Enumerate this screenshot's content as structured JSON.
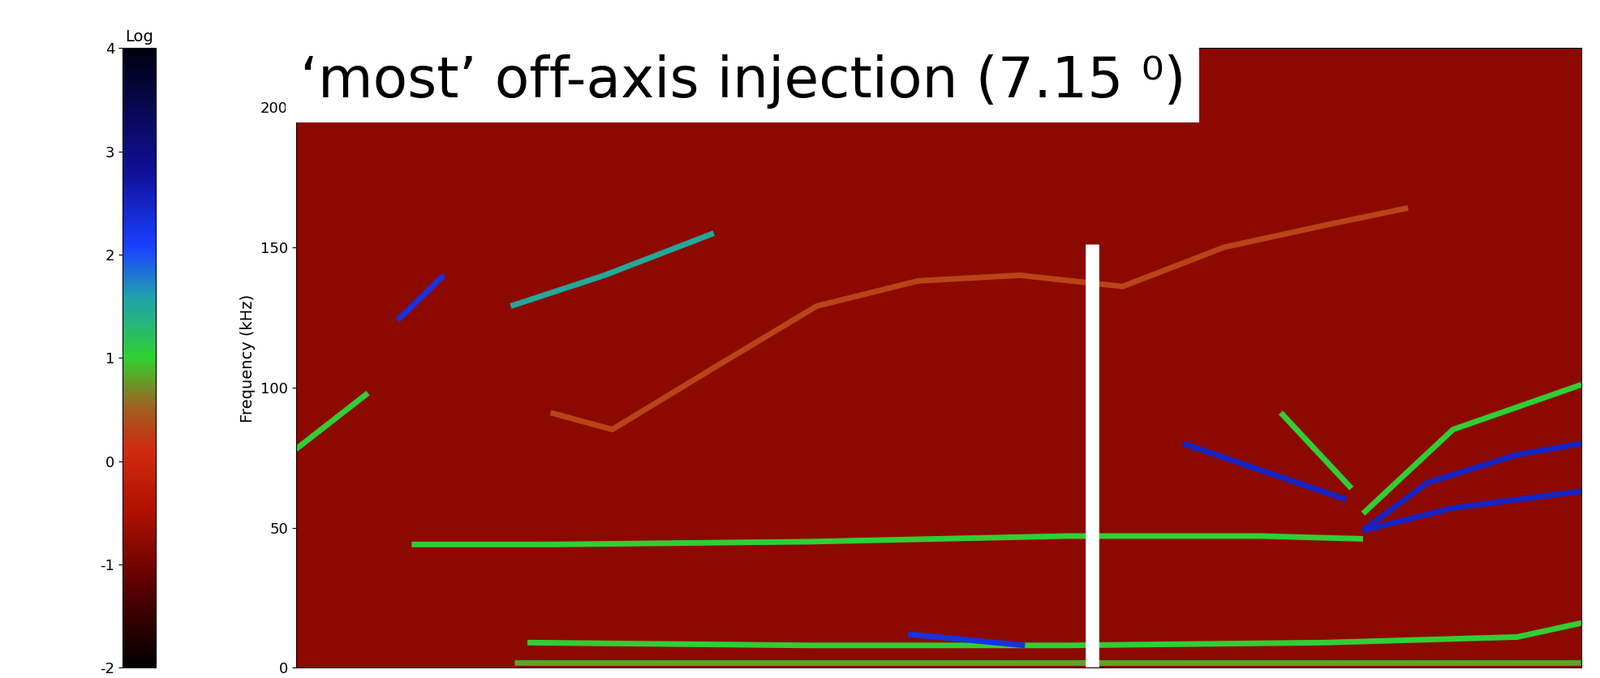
{
  "chart_data": {
    "type": "spectrogram",
    "annotation": "‘most’ off-axis injection (7.15 ⁰)",
    "y_label": "Frequency (kHz)",
    "xlim": [
      0,
      100
    ],
    "ylim": [
      0,
      221
    ],
    "yticks": [
      0,
      50,
      100,
      150,
      200
    ],
    "tick_labels": "y",
    "background": -0.8,
    "colorbar": {
      "label": "Log",
      "range": [
        -2,
        4
      ],
      "ticks": [
        -2,
        -1,
        0,
        1,
        2,
        3,
        4
      ]
    },
    "series": [
      {
        "x": [
          9,
          20,
          40,
          60,
          75,
          83
        ],
        "values": [
          44,
          44,
          45,
          47,
          47,
          46
        ],
        "level": 1
      },
      {
        "x": [
          19.8,
          24.6,
          32.5,
          40.5,
          48.4,
          56.3,
          64.3,
          72.2,
          80.2,
          86.5
        ],
        "values": [
          91,
          85,
          107,
          129,
          138,
          140,
          136,
          150,
          158,
          164
        ],
        "level": 0.3
      },
      {
        "x": [
          7.9,
          11.5
        ],
        "values": [
          124,
          140
        ],
        "level": 2.3
      },
      {
        "x": [
          16.7,
          24,
          32.5
        ],
        "values": [
          129,
          140,
          155
        ],
        "level": 1.5
      },
      {
        "x": [
          0,
          5.6
        ],
        "values": [
          78,
          98
        ],
        "level": 1
      },
      {
        "x": [
          17,
          40,
          60,
          80,
          100
        ],
        "values": [
          2,
          2,
          2,
          2,
          2
        ],
        "level": 0.8
      },
      {
        "x": [
          18,
          40,
          60,
          80,
          95,
          100
        ],
        "values": [
          9,
          8,
          8,
          9,
          11,
          16
        ],
        "level": 1
      },
      {
        "x": [
          47.6,
          56.7
        ],
        "values": [
          12,
          8
        ],
        "level": 2.3
      },
      {
        "x": [
          69,
          81.7
        ],
        "values": [
          80,
          60
        ],
        "level": 2.5
      },
      {
        "x": [
          76.6,
          82.1
        ],
        "values": [
          91,
          64
        ],
        "level": 1
      },
      {
        "x": [
          83,
          88,
          95,
          100
        ],
        "values": [
          49,
          66,
          76,
          80
        ],
        "level": 2.5
      },
      {
        "x": [
          83,
          90,
          100
        ],
        "values": [
          49,
          57,
          63
        ],
        "level": 2.5
      },
      {
        "x": [
          83,
          90,
          100
        ],
        "values": [
          55,
          85,
          101
        ],
        "level": 1
      }
    ],
    "marker_line": {
      "x": 61.9,
      "values": [
        0,
        151
      ],
      "color": "#ffffff"
    }
  }
}
